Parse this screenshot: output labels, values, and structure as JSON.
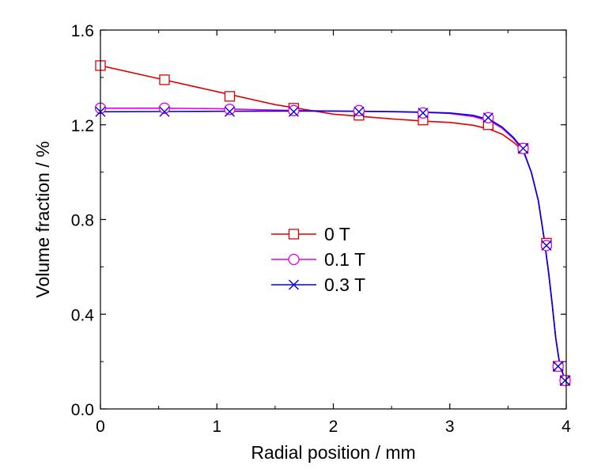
{
  "chart_data": {
    "type": "line",
    "title": "",
    "xlabel": "Radial position / mm",
    "ylabel": "Volume fraction / %",
    "xlim": [
      0,
      4
    ],
    "ylim": [
      0.0,
      1.6
    ],
    "xticks": [
      "0",
      "1",
      "2",
      "3",
      "4"
    ],
    "yticks": [
      "0.0",
      "0.4",
      "0.8",
      "1.2",
      "1.6"
    ],
    "grid": false,
    "legend_position": "center",
    "series": [
      {
        "name": "0 T",
        "color": "#e00000",
        "marker": "square",
        "x": [
          0,
          0.55,
          1.11,
          1.66,
          2.22,
          2.77,
          3.33,
          3.63,
          3.83,
          3.93,
          3.99
        ],
        "y": [
          1.45,
          1.39,
          1.32,
          1.27,
          1.24,
          1.22,
          1.2,
          1.1,
          0.7,
          0.18,
          0.12
        ],
        "curve_x": [
          0,
          0.5,
          1.0,
          1.5,
          2.0,
          2.5,
          2.8,
          3.0,
          3.2,
          3.35,
          3.45,
          3.55,
          3.63,
          3.7,
          3.76,
          3.81,
          3.85,
          3.88,
          3.91,
          3.94,
          3.97,
          3.99
        ],
        "curve_y": [
          1.45,
          1.395,
          1.34,
          1.285,
          1.245,
          1.225,
          1.215,
          1.21,
          1.198,
          1.18,
          1.16,
          1.125,
          1.09,
          1.0,
          0.88,
          0.72,
          0.57,
          0.44,
          0.3,
          0.2,
          0.15,
          0.12
        ]
      },
      {
        "name": "0.1 T",
        "color": "#e000e0",
        "marker": "circle",
        "x": [
          0,
          0.55,
          1.11,
          1.66,
          2.22,
          2.77,
          3.33,
          3.63,
          3.83,
          3.93,
          3.99
        ],
        "y": [
          1.27,
          1.27,
          1.265,
          1.26,
          1.26,
          1.25,
          1.23,
          1.1,
          0.69,
          0.18,
          0.12
        ],
        "curve_x": [
          0,
          0.5,
          1.0,
          1.5,
          2.0,
          2.5,
          2.8,
          3.0,
          3.2,
          3.35,
          3.45,
          3.55,
          3.63,
          3.7,
          3.76,
          3.81,
          3.85,
          3.88,
          3.91,
          3.94,
          3.97,
          3.99
        ],
        "curve_y": [
          1.27,
          1.27,
          1.268,
          1.262,
          1.258,
          1.255,
          1.252,
          1.248,
          1.235,
          1.215,
          1.185,
          1.14,
          1.09,
          1.0,
          0.88,
          0.72,
          0.57,
          0.44,
          0.3,
          0.2,
          0.15,
          0.12
        ]
      },
      {
        "name": "0.3 T",
        "color": "#0000e0",
        "marker": "x",
        "x": [
          0,
          0.55,
          1.11,
          1.66,
          2.22,
          2.77,
          3.33,
          3.63,
          3.83,
          3.93,
          3.99
        ],
        "y": [
          1.255,
          1.255,
          1.255,
          1.255,
          1.255,
          1.25,
          1.23,
          1.1,
          0.69,
          0.18,
          0.12
        ],
        "curve_x": [
          0,
          0.5,
          1.0,
          1.5,
          2.0,
          2.5,
          2.8,
          3.0,
          3.2,
          3.35,
          3.45,
          3.55,
          3.63,
          3.7,
          3.76,
          3.81,
          3.85,
          3.88,
          3.91,
          3.94,
          3.97,
          3.99
        ],
        "curve_y": [
          1.255,
          1.256,
          1.257,
          1.258,
          1.258,
          1.256,
          1.253,
          1.25,
          1.24,
          1.22,
          1.19,
          1.145,
          1.095,
          1.0,
          0.88,
          0.72,
          0.57,
          0.44,
          0.3,
          0.2,
          0.15,
          0.12
        ]
      }
    ]
  }
}
